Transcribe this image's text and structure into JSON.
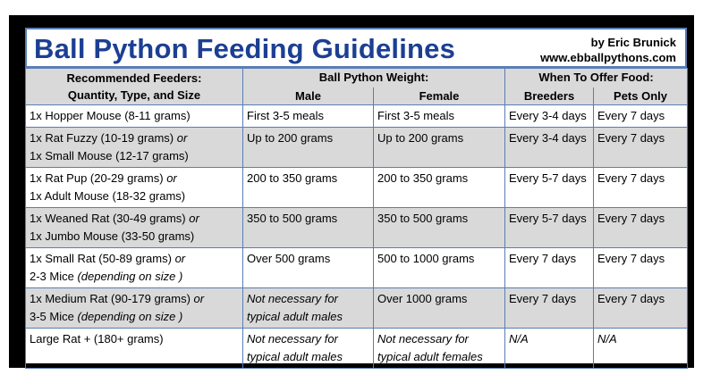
{
  "title": "Ball Python Feeding Guidelines",
  "credit": {
    "author": "by Eric Brunick",
    "website": "www.ebballpythons.com"
  },
  "headers": {
    "feeders_line1": "Recommended Feeders:",
    "feeders_line2": "Quantity, Type, and Size",
    "weight": "Ball Python Weight:",
    "male": "Male",
    "female": "Female",
    "when": "When To Offer Food:",
    "breeders": "Breeders",
    "pets": "Pets Only"
  },
  "rows": [
    {
      "feeder_a": "1x Hopper Mouse (8-11 grams)",
      "feeder_a_tail": "",
      "feeder_b": "",
      "feeder_b_tail": "",
      "male_1": "First 3-5 meals",
      "male_2": "",
      "female_1": "First 3-5 meals",
      "female_2": "",
      "breeders": "Every 3-4 days",
      "pets": "Every 7 days"
    },
    {
      "feeder_a": "1x Rat Fuzzy (10-19 grams) ",
      "feeder_a_tail": "or",
      "feeder_b": "1x Small Mouse (12-17 grams)",
      "feeder_b_tail": "",
      "male_1": "Up to 200 grams",
      "male_2": "",
      "female_1": "Up to 200 grams",
      "female_2": "",
      "breeders": "Every 3-4 days",
      "pets": "Every 7 days"
    },
    {
      "feeder_a": "1x Rat Pup (20-29 grams) ",
      "feeder_a_tail": "or",
      "feeder_b": "1x Adult Mouse (18-32 grams)",
      "feeder_b_tail": "",
      "male_1": "200 to 350 grams",
      "male_2": "",
      "female_1": "200 to 350 grams",
      "female_2": "",
      "breeders": "Every 5-7 days",
      "pets": "Every 7 days"
    },
    {
      "feeder_a": "1x Weaned Rat (30-49 grams) ",
      "feeder_a_tail": "or",
      "feeder_b": "1x Jumbo Mouse (33-50 grams)",
      "feeder_b_tail": "",
      "male_1": "350 to 500 grams",
      "male_2": "",
      "female_1": "350 to 500 grams",
      "female_2": "",
      "breeders": "Every 5-7 days",
      "pets": "Every 7 days"
    },
    {
      "feeder_a": "1x Small Rat (50-89 grams) ",
      "feeder_a_tail": "or",
      "feeder_b": "2-3 Mice ",
      "feeder_b_tail": "(depending on size )",
      "male_1": "Over 500 grams",
      "male_2": "",
      "female_1": "500 to 1000 grams",
      "female_2": "",
      "breeders": "Every 7 days",
      "pets": "Every 7 days"
    },
    {
      "feeder_a": "1x Medium Rat (90-179 grams) ",
      "feeder_a_tail": "or",
      "feeder_b": "3-5 Mice ",
      "feeder_b_tail": "(depending on size )",
      "male_1": "Not necessary for",
      "male_2": "typical adult males",
      "female_1": "Over 1000 grams",
      "female_2": "",
      "breeders": "Every 7 days",
      "pets": "Every 7 days"
    },
    {
      "feeder_a": "Large Rat + (180+ grams)",
      "feeder_a_tail": "",
      "feeder_b": "",
      "feeder_b_tail": "",
      "male_1": "Not necessary for",
      "male_2": "typical adult males",
      "female_1": "Not necessary for",
      "female_2": "typical adult females",
      "breeders": "N/A",
      "pets": "N/A"
    }
  ]
}
